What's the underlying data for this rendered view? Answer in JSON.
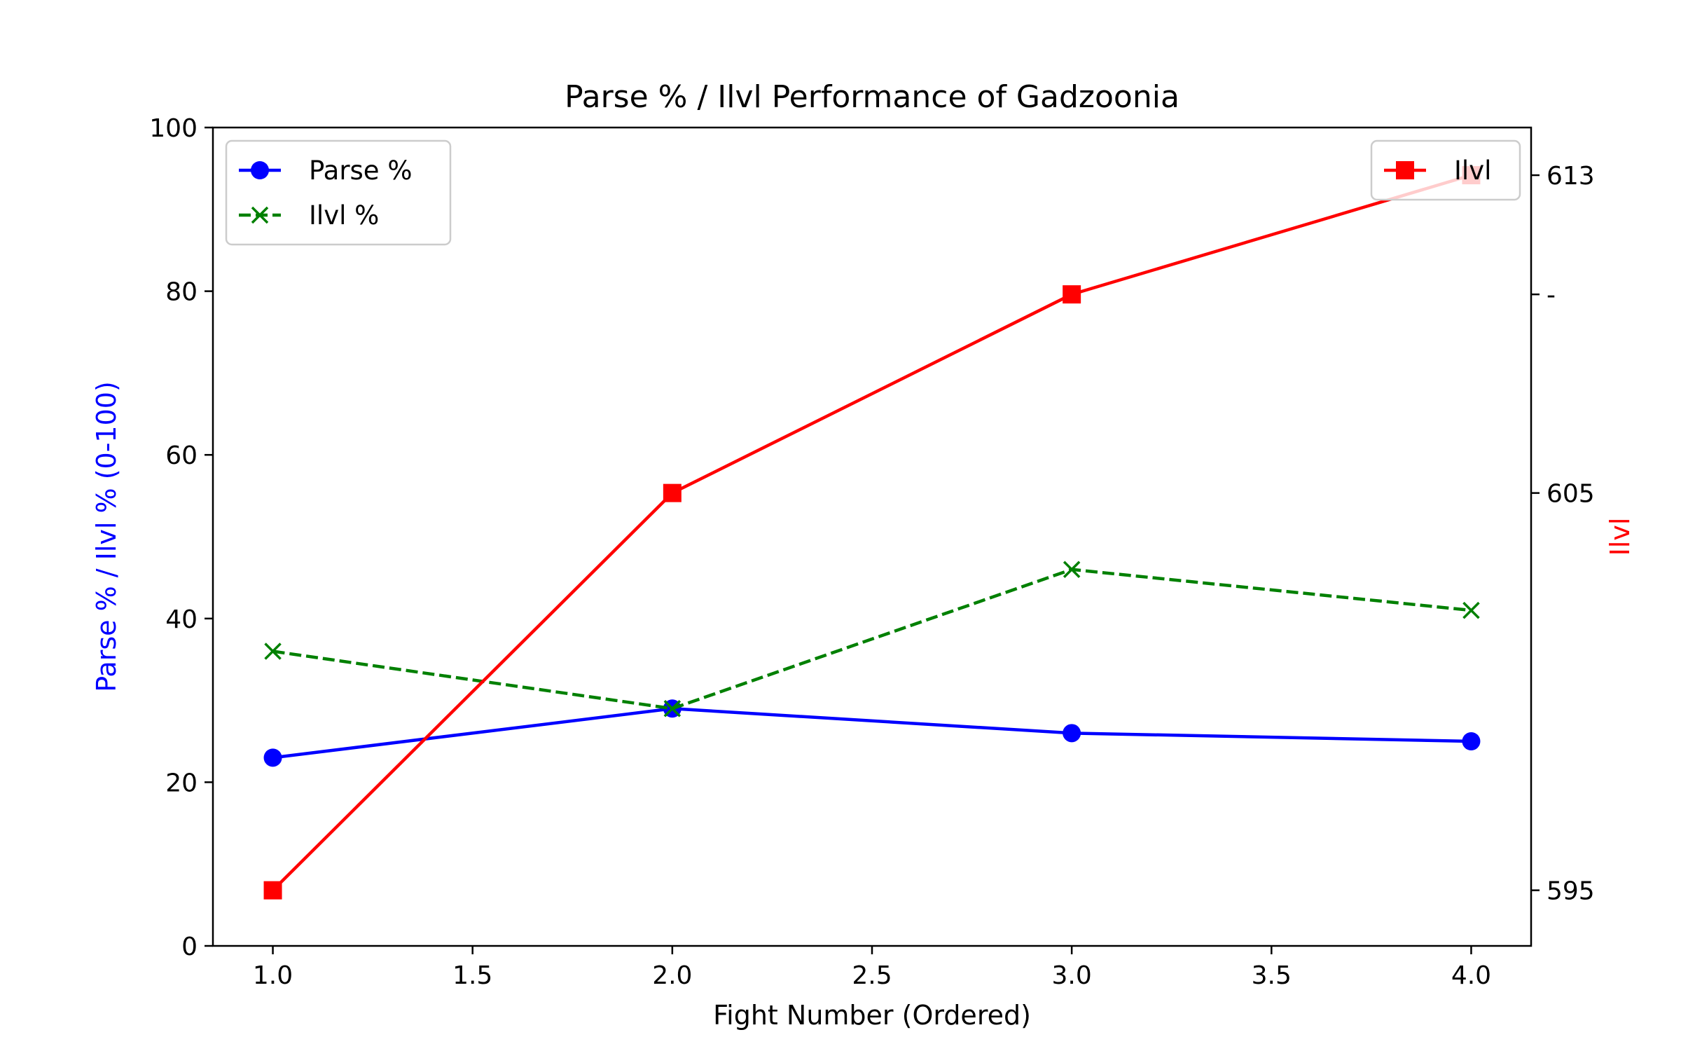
{
  "chart_data": {
    "type": "line",
    "title": "Parse % / Ilvl Performance of Gadzoonia",
    "xlabel": "Fight Number (Ordered)",
    "ylabel_left": "Parse % / Ilvl % (0-100)",
    "ylabel_right": "Ilvl",
    "x": [
      1,
      2,
      3,
      4
    ],
    "xlim": [
      0.85,
      4.15
    ],
    "ylim_left": [
      0,
      100
    ],
    "ylim_right": [
      593.6,
      614.2
    ],
    "x_ticks": [
      1.0,
      1.5,
      2.0,
      2.5,
      3.0,
      3.5,
      4.0
    ],
    "x_tick_labels": [
      "1.0",
      "1.5",
      "2.0",
      "2.5",
      "3.0",
      "3.5",
      "4.0"
    ],
    "y_left_ticks": [
      0,
      20,
      40,
      60,
      80,
      100
    ],
    "y_left_tick_labels": [
      "0",
      "20",
      "40",
      "60",
      "80",
      "100"
    ],
    "y_right_ticks": [
      595,
      605,
      610,
      613
    ],
    "y_right_tick_labels": [
      "595",
      "605",
      "-",
      "613"
    ],
    "grid": false,
    "series": [
      {
        "name": "Parse %",
        "axis": "left",
        "color": "#0000ff",
        "marker": "circle",
        "linestyle": "solid",
        "values": [
          23,
          29,
          26,
          25
        ]
      },
      {
        "name": "Ilvl %",
        "axis": "left",
        "color": "#008000",
        "marker": "x",
        "linestyle": "dashed",
        "values": [
          36,
          29,
          46,
          41
        ]
      },
      {
        "name": "Ilvl",
        "axis": "right",
        "color": "#ff0000",
        "marker": "square",
        "linestyle": "solid",
        "values": [
          595,
          605,
          610,
          613
        ]
      }
    ],
    "legend_left_placement": "upper-left",
    "legend_right_placement": "upper-right",
    "ylabel_left_color": "#0000ff",
    "ylabel_right_color": "#ff0000"
  }
}
